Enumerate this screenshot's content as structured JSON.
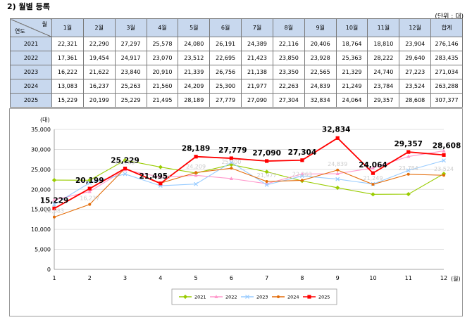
{
  "title": "2) 월별 등록",
  "unit": "(단위 : 대)",
  "table": {
    "corner_month": "월",
    "corner_year": "연도",
    "total_label": "합계",
    "rows": [
      {
        "year": "2021",
        "values": [
          "22,321",
          "22,290",
          "27,297",
          "25,578",
          "24,080",
          "26,191",
          "24,389",
          "22,116",
          "20,406",
          "18,764",
          "18,810",
          "23,904"
        ],
        "total": "276,146"
      },
      {
        "year": "2022",
        "values": [
          "17,361",
          "19,454",
          "24,917",
          "23,070",
          "23,512",
          "22,695",
          "21,423",
          "23,850",
          "23,928",
          "25,363",
          "28,222",
          "29,640"
        ],
        "total": "283,435"
      },
      {
        "year": "2023",
        "values": [
          "16,222",
          "21,622",
          "23,840",
          "20,910",
          "21,339",
          "26,756",
          "21,138",
          "23,350",
          "22,565",
          "21,329",
          "24,740",
          "27,223"
        ],
        "total": "271,034"
      },
      {
        "year": "2024",
        "values": [
          "13,083",
          "16,237",
          "25,263",
          "21,560",
          "24,209",
          "25,300",
          "21,977",
          "22,263",
          "24,839",
          "21,249",
          "23,784",
          "23,524"
        ],
        "total": "263,288"
      },
      {
        "year": "2025",
        "values": [
          "15,229",
          "20,199",
          "25,229",
          "21,495",
          "28,189",
          "27,779",
          "27,090",
          "27,304",
          "32,834",
          "24,064",
          "29,357",
          "28,608"
        ],
        "total": "307,377"
      }
    ]
  },
  "chart_data": {
    "type": "line",
    "yunit": "(대)",
    "xunit": "(월)",
    "x": [
      1,
      2,
      3,
      4,
      5,
      6,
      7,
      8,
      9,
      10,
      11,
      12
    ],
    "ylim": [
      0,
      35000
    ],
    "yticks": [
      "0",
      "5,000",
      "10,000",
      "15,000",
      "20,000",
      "25,000",
      "30,000",
      "35,000"
    ],
    "grid": "horizontal",
    "legend": "bottom",
    "series": [
      {
        "name": "2021",
        "color": "#99cc00",
        "values": [
          22321,
          22290,
          27297,
          25578,
          24080,
          26191,
          24389,
          22116,
          20406,
          18764,
          18810,
          23904
        ]
      },
      {
        "name": "2022",
        "color": "#ff99cc",
        "values": [
          17361,
          19454,
          24917,
          23070,
          23512,
          22695,
          21423,
          23850,
          23928,
          25363,
          28222,
          29640
        ]
      },
      {
        "name": "2023",
        "color": "#99ccff",
        "values": [
          16222,
          21622,
          23840,
          20910,
          21339,
          26756,
          21138,
          23350,
          22565,
          21329,
          24740,
          27223
        ]
      },
      {
        "name": "2024",
        "color": "#e36c09",
        "values": [
          13083,
          16237,
          25263,
          21560,
          24209,
          25300,
          21977,
          22263,
          24839,
          21249,
          23784,
          23524
        ]
      },
      {
        "name": "2025",
        "color": "#ff0000",
        "values": [
          15229,
          20199,
          25229,
          21495,
          28189,
          27779,
          27090,
          27304,
          32834,
          24064,
          29357,
          28608
        ]
      }
    ],
    "data_labels_2025": [
      "15,229",
      "20,199",
      "25,229",
      "21,495",
      "28,189",
      "27,779",
      "27,090",
      "27,304",
      "32,834",
      "24,064",
      "29,357",
      "28,608"
    ],
    "faint_labels": [
      {
        "series": "2024",
        "x": 1,
        "text": "13,083"
      },
      {
        "series": "2024",
        "x": 2,
        "text": "16,237"
      },
      {
        "series": "2024",
        "x": 3,
        "text": "25,263"
      },
      {
        "series": "2024",
        "x": 4,
        "text": "21,560"
      },
      {
        "series": "2024",
        "x": 5,
        "text": "24,209"
      },
      {
        "series": "2024",
        "x": 6,
        "text": "25,300"
      },
      {
        "series": "2024",
        "x": 7,
        "text": "21,977"
      },
      {
        "series": "2024",
        "x": 8,
        "text": "22,263"
      },
      {
        "series": "2024",
        "x": 9,
        "text": "24,839"
      },
      {
        "series": "2024",
        "x": 10,
        "text": "21,249"
      },
      {
        "series": "2024",
        "x": 11,
        "text": "23,784"
      },
      {
        "series": "2024",
        "x": 12,
        "text": "23,524"
      }
    ]
  }
}
